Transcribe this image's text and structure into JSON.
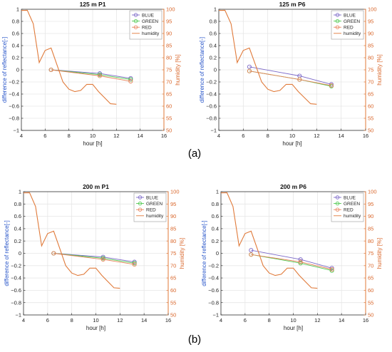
{
  "figure": {
    "caption_a": "(a)",
    "caption_b": "(b)"
  },
  "chart_data": [
    {
      "type": "line",
      "title": "125 m  P1",
      "xlabel": "hour [h]",
      "ylabel": "difference of reflectance[-]",
      "ylabel_right": "humidity [%]",
      "xlim": [
        4,
        16
      ],
      "ylim": [
        -1,
        1
      ],
      "ylim_right": [
        50,
        100
      ],
      "xticks": [
        4,
        6,
        8,
        10,
        12,
        14,
        16
      ],
      "yticks": [
        -1,
        -0.8,
        -0.6,
        -0.4,
        -0.2,
        0,
        0.2,
        0.4,
        0.6,
        0.8,
        1
      ],
      "yticks_right": [
        50,
        55,
        60,
        65,
        70,
        75,
        80,
        85,
        90,
        95,
        100
      ],
      "grid": true,
      "legend_position": "top-right",
      "series": [
        {
          "name": "BLUE",
          "color": "#7b68c8",
          "marker": "circle",
          "x": [
            6.5,
            10.6,
            13.2
          ],
          "y": [
            0.0,
            -0.06,
            -0.14
          ]
        },
        {
          "name": "GREEN",
          "color": "#4dc84d",
          "marker": "circle",
          "x": [
            6.5,
            10.6,
            13.2
          ],
          "y": [
            0.0,
            -0.08,
            -0.16
          ]
        },
        {
          "name": "RED",
          "color": "#e8825a",
          "marker": "circle",
          "x": [
            6.5,
            10.6,
            13.2
          ],
          "y": [
            0.0,
            -0.1,
            -0.19
          ]
        },
        {
          "name": "humidity",
          "color": "#e07a3a",
          "axis": "right",
          "x": [
            4.0,
            4.5,
            5.0,
            5.5,
            6.0,
            6.5,
            7.0,
            7.5,
            8.0,
            8.5,
            9.0,
            9.5,
            10.0,
            10.5,
            11.0,
            11.5,
            12.0
          ],
          "y": [
            99.5,
            99.6,
            94,
            78,
            83,
            84,
            77,
            70,
            67,
            66,
            66.5,
            69,
            69,
            66,
            63.5,
            61,
            60.8
          ]
        }
      ]
    },
    {
      "type": "line",
      "title": "125 m  P6",
      "xlabel": "hour [h]",
      "ylabel": "difference of reflectance[-]",
      "ylabel_right": "humidity [%]",
      "xlim": [
        4,
        16
      ],
      "ylim": [
        -1,
        1
      ],
      "ylim_right": [
        50,
        100
      ],
      "xticks": [
        4,
        6,
        8,
        10,
        12,
        14,
        16
      ],
      "yticks": [
        -1,
        -0.8,
        -0.6,
        -0.4,
        -0.2,
        0,
        0.2,
        0.4,
        0.6,
        0.8,
        1
      ],
      "yticks_right": [
        50,
        55,
        60,
        65,
        70,
        75,
        80,
        85,
        90,
        95,
        100
      ],
      "grid": true,
      "legend_position": "top-right",
      "series": [
        {
          "name": "BLUE",
          "color": "#7b68c8",
          "marker": "circle",
          "x": [
            6.5,
            10.6,
            13.2
          ],
          "y": [
            0.05,
            -0.1,
            -0.24
          ]
        },
        {
          "name": "GREEN",
          "color": "#4dc84d",
          "marker": "circle",
          "x": [
            6.5,
            10.6,
            13.2
          ],
          "y": [
            -0.02,
            -0.16,
            -0.27
          ]
        },
        {
          "name": "RED",
          "color": "#e8825a",
          "marker": "circle",
          "x": [
            6.5,
            10.6,
            13.2
          ],
          "y": [
            -0.02,
            -0.16,
            -0.26
          ]
        },
        {
          "name": "humidity",
          "color": "#e07a3a",
          "axis": "right",
          "x": [
            4.0,
            4.5,
            5.0,
            5.5,
            6.0,
            6.5,
            7.0,
            7.5,
            8.0,
            8.5,
            9.0,
            9.5,
            10.0,
            10.5,
            11.0,
            11.5,
            12.0
          ],
          "y": [
            99.5,
            99.6,
            94,
            78,
            83,
            84,
            77,
            70,
            67,
            66,
            66.5,
            69,
            69,
            66,
            63.5,
            61,
            60.8
          ]
        }
      ]
    },
    {
      "type": "line",
      "title": "200 m  P1",
      "xlabel": "hour [h]",
      "ylabel": "difference of reflectance[-]",
      "ylabel_right": "humidity [%]",
      "xlim": [
        4,
        16
      ],
      "ylim": [
        -1,
        1
      ],
      "ylim_right": [
        50,
        100
      ],
      "xticks": [
        4,
        6,
        8,
        10,
        12,
        14,
        16
      ],
      "yticks": [
        -1,
        -0.8,
        -0.6,
        -0.4,
        -0.2,
        0,
        0.2,
        0.4,
        0.6,
        0.8,
        1
      ],
      "yticks_right": [
        50,
        55,
        60,
        65,
        70,
        75,
        80,
        85,
        90,
        95,
        100
      ],
      "grid": true,
      "legend_position": "top-right",
      "series": [
        {
          "name": "BLUE",
          "color": "#7b68c8",
          "marker": "circle",
          "x": [
            6.5,
            10.6,
            13.2
          ],
          "y": [
            0.0,
            -0.06,
            -0.14
          ]
        },
        {
          "name": "GREEN",
          "color": "#4dc84d",
          "marker": "circle",
          "x": [
            6.5,
            10.6,
            13.2
          ],
          "y": [
            0.0,
            -0.08,
            -0.16
          ]
        },
        {
          "name": "RED",
          "color": "#e8825a",
          "marker": "circle",
          "x": [
            6.5,
            10.6,
            13.2
          ],
          "y": [
            0.0,
            -0.1,
            -0.18
          ]
        },
        {
          "name": "humidity",
          "color": "#e07a3a",
          "axis": "right",
          "x": [
            4.0,
            4.5,
            5.0,
            5.5,
            6.0,
            6.5,
            7.0,
            7.5,
            8.0,
            8.5,
            9.0,
            9.5,
            10.0,
            10.5,
            11.0,
            11.5,
            12.0
          ],
          "y": [
            99.5,
            99.6,
            94,
            78,
            83,
            84,
            77,
            70,
            67,
            66,
            66.5,
            69,
            69,
            66,
            63.5,
            61,
            60.8
          ]
        }
      ]
    },
    {
      "type": "line",
      "title": "200 m  P6",
      "xlabel": "hour [h]",
      "ylabel": "difference of reflectance[-]",
      "ylabel_right": "humidity [%]",
      "xlim": [
        4,
        16
      ],
      "ylim": [
        -1,
        1
      ],
      "ylim_right": [
        50,
        100
      ],
      "xticks": [
        4,
        6,
        8,
        10,
        12,
        14,
        16
      ],
      "yticks": [
        -1,
        -0.8,
        -0.6,
        -0.4,
        -0.2,
        0,
        0.2,
        0.4,
        0.6,
        0.8,
        1
      ],
      "yticks_right": [
        50,
        55,
        60,
        65,
        70,
        75,
        80,
        85,
        90,
        95,
        100
      ],
      "grid": true,
      "legend_position": "top-right",
      "series": [
        {
          "name": "BLUE",
          "color": "#7b68c8",
          "marker": "circle",
          "x": [
            6.5,
            10.6,
            13.2
          ],
          "y": [
            0.05,
            -0.1,
            -0.24
          ]
        },
        {
          "name": "GREEN",
          "color": "#4dc84d",
          "marker": "circle",
          "x": [
            6.5,
            10.6,
            13.2
          ],
          "y": [
            -0.02,
            -0.16,
            -0.28
          ]
        },
        {
          "name": "RED",
          "color": "#e8825a",
          "marker": "circle",
          "x": [
            6.5,
            10.6,
            13.2
          ],
          "y": [
            -0.02,
            -0.14,
            -0.26
          ]
        },
        {
          "name": "humidity",
          "color": "#e07a3a",
          "axis": "right",
          "x": [
            4.0,
            4.5,
            5.0,
            5.5,
            6.0,
            6.5,
            7.0,
            7.5,
            8.0,
            8.5,
            9.0,
            9.5,
            10.0,
            10.5,
            11.0,
            11.5,
            12.0
          ],
          "y": [
            99.5,
            99.6,
            94,
            78,
            83,
            84,
            77,
            70,
            67,
            66,
            66.5,
            69,
            69,
            66,
            63.5,
            61,
            60.8
          ]
        }
      ]
    }
  ]
}
